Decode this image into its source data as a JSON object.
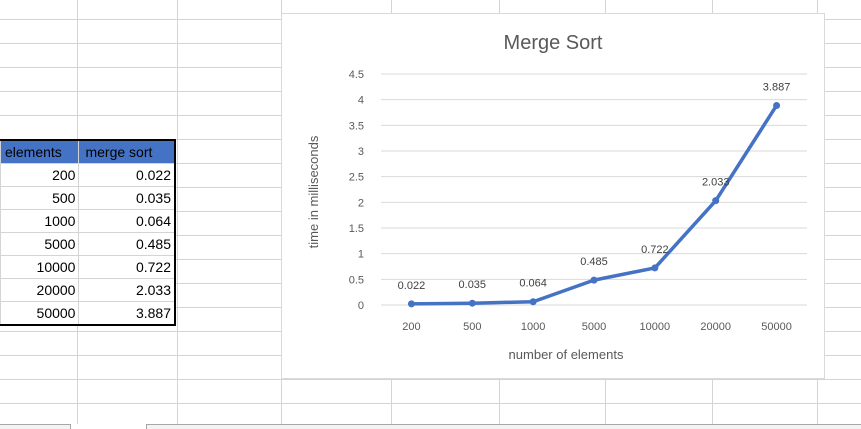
{
  "table": {
    "headers": [
      "elements",
      "merge sort"
    ],
    "rows": [
      [
        "200",
        "0.022"
      ],
      [
        "500",
        "0.035"
      ],
      [
        "1000",
        "0.064"
      ],
      [
        "5000",
        "0.485"
      ],
      [
        "10000",
        "0.722"
      ],
      [
        "20000",
        "2.033"
      ],
      [
        "50000",
        "3.887"
      ]
    ]
  },
  "colors": {
    "header_fill": "#4472c4",
    "series_line": "#4472c4",
    "gridline": "#d9d9d9",
    "cell_border": "#d4d4d4"
  },
  "chart_data": {
    "type": "line",
    "title": "Merge Sort",
    "xlabel": "number of elements",
    "ylabel": "time in milliseconds",
    "categories": [
      "200",
      "500",
      "1000",
      "5000",
      "10000",
      "20000",
      "50000"
    ],
    "values": [
      0.022,
      0.035,
      0.064,
      0.485,
      0.722,
      2.033,
      3.887
    ],
    "data_labels": [
      "0.022",
      "0.035",
      "0.064",
      "0.485",
      "0.722",
      "2.033",
      "3.887"
    ],
    "yticks": [
      "0",
      "0.5",
      "1",
      "1.5",
      "2",
      "2.5",
      "3",
      "3.5",
      "4",
      "4.5"
    ],
    "ylim": [
      0,
      4.5
    ],
    "grid": true,
    "legend": "none"
  }
}
